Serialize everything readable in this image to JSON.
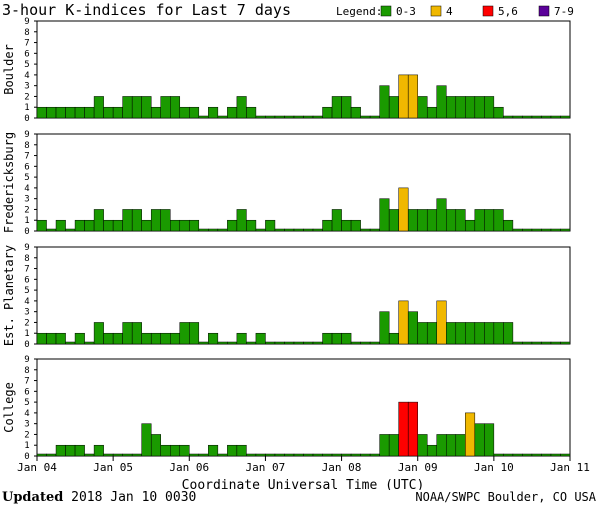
{
  "chart_data": {
    "type": "bar",
    "title": "3-hour K-indices for Last 7 days",
    "xlabel": "Coordinate Universal Time (UTC)",
    "ylim": [
      0,
      9
    ],
    "yticks": [
      "0",
      "1",
      "2",
      "3",
      "4",
      "5",
      "6",
      "7",
      "8",
      "9"
    ],
    "x_tick_labels": [
      "Jan 04",
      "Jan 05",
      "Jan 06",
      "Jan 07",
      "Jan 08",
      "Jan 09",
      "Jan 10",
      "Jan 11"
    ],
    "grid": false,
    "legend": {
      "title": "Legend:",
      "placement": "top-right",
      "items": [
        {
          "label": "0-3",
          "color": "#1a9a00"
        },
        {
          "label": "4",
          "color": "#f0b800"
        },
        {
          "label": "5,6",
          "color": "#ff0000"
        },
        {
          "label": "7-9",
          "color": "#5a0099"
        }
      ]
    },
    "panels": [
      {
        "name": "Boulder",
        "values": [
          1,
          1,
          1,
          1,
          1,
          1,
          2,
          1,
          1,
          2,
          2,
          2,
          1,
          2,
          2,
          1,
          1,
          0,
          1,
          0,
          1,
          2,
          1,
          0,
          0,
          0,
          0,
          0,
          0,
          0,
          1,
          2,
          2,
          1,
          0,
          0,
          3,
          2,
          4,
          4,
          2,
          1,
          3,
          2,
          2,
          2,
          2,
          2,
          1,
          0,
          0,
          0,
          0,
          0,
          0,
          0
        ]
      },
      {
        "name": "Fredericksburg",
        "values": [
          1,
          0,
          1,
          0,
          1,
          1,
          2,
          1,
          1,
          2,
          2,
          1,
          2,
          2,
          1,
          1,
          1,
          0,
          0,
          0,
          1,
          2,
          1,
          0,
          1,
          0,
          0,
          0,
          0,
          0,
          1,
          2,
          1,
          1,
          0,
          0,
          3,
          2,
          4,
          2,
          2,
          2,
          3,
          2,
          2,
          1,
          2,
          2,
          2,
          1,
          0,
          0,
          0,
          0,
          0,
          0
        ]
      },
      {
        "name": "Est. Planetary",
        "values": [
          1,
          1,
          1,
          0,
          1,
          0,
          2,
          1,
          1,
          2,
          2,
          1,
          1,
          1,
          1,
          2,
          2,
          0,
          1,
          0,
          0,
          1,
          0,
          1,
          0,
          0,
          0,
          0,
          0,
          0,
          1,
          1,
          1,
          0,
          0,
          0,
          3,
          1,
          4,
          3,
          2,
          2,
          4,
          2,
          2,
          2,
          2,
          2,
          2,
          2,
          0,
          0,
          0,
          0,
          0,
          0
        ]
      },
      {
        "name": "College",
        "values": [
          0,
          0,
          1,
          1,
          1,
          0,
          1,
          0,
          0,
          0,
          0,
          3,
          2,
          1,
          1,
          1,
          0,
          0,
          1,
          0,
          1,
          1,
          0,
          0,
          0,
          0,
          0,
          0,
          0,
          0,
          0,
          0,
          0,
          0,
          0,
          0,
          2,
          2,
          5,
          5,
          2,
          1,
          2,
          2,
          2,
          4,
          3,
          3,
          0,
          0,
          0,
          0,
          0,
          0,
          0,
          0
        ]
      }
    ]
  },
  "footer": {
    "updated_label": "Updated",
    "updated_value": "2018 Jan 10 0030",
    "credit": "NOAA/SWPC Boulder, CO USA"
  }
}
